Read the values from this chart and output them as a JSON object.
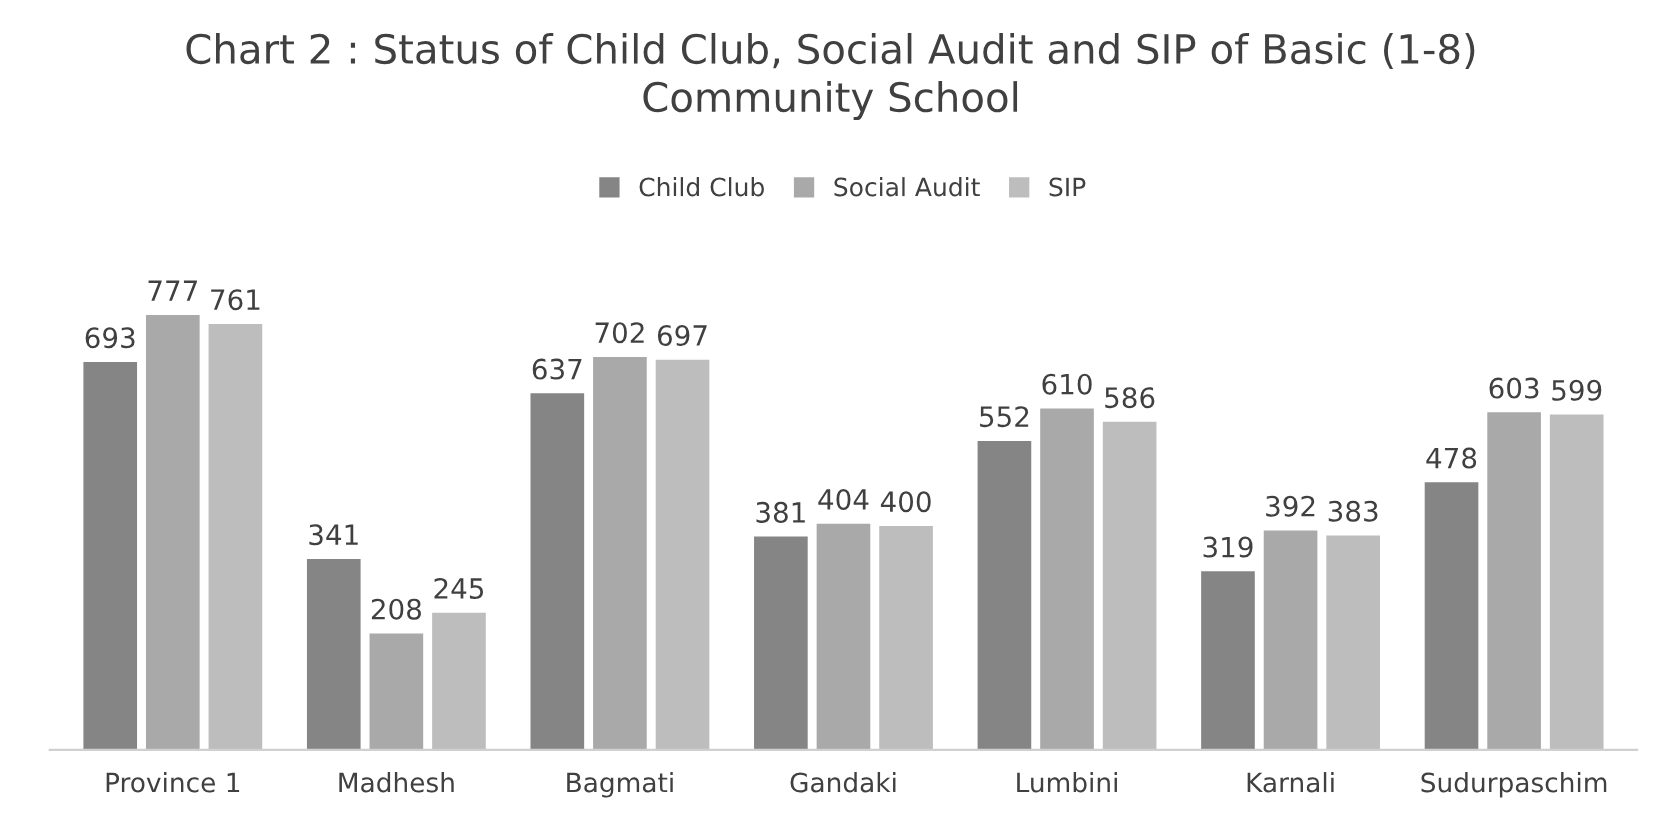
{
  "chart_data": {
    "type": "bar",
    "title": "Chart 2 : Status of Child Club, Social Audit and SIP of Basic (1-8)\nCommunity School",
    "categories": [
      "Province 1",
      "Madhesh",
      "Bagmati",
      "Gandaki",
      "Lumbini",
      "Karnali",
      "Sudurpaschim"
    ],
    "series": [
      {
        "name": "Child Club",
        "color": "#858585",
        "values": [
          693,
          341,
          637,
          381,
          552,
          319,
          478
        ]
      },
      {
        "name": "Social Audit",
        "color": "#a9a9a9",
        "values": [
          777,
          208,
          702,
          404,
          610,
          392,
          603
        ]
      },
      {
        "name": "SIP",
        "color": "#bdbdbd",
        "values": [
          761,
          245,
          697,
          400,
          586,
          383,
          599
        ]
      }
    ],
    "data_labels": true,
    "legend": "top",
    "grid": false
  }
}
